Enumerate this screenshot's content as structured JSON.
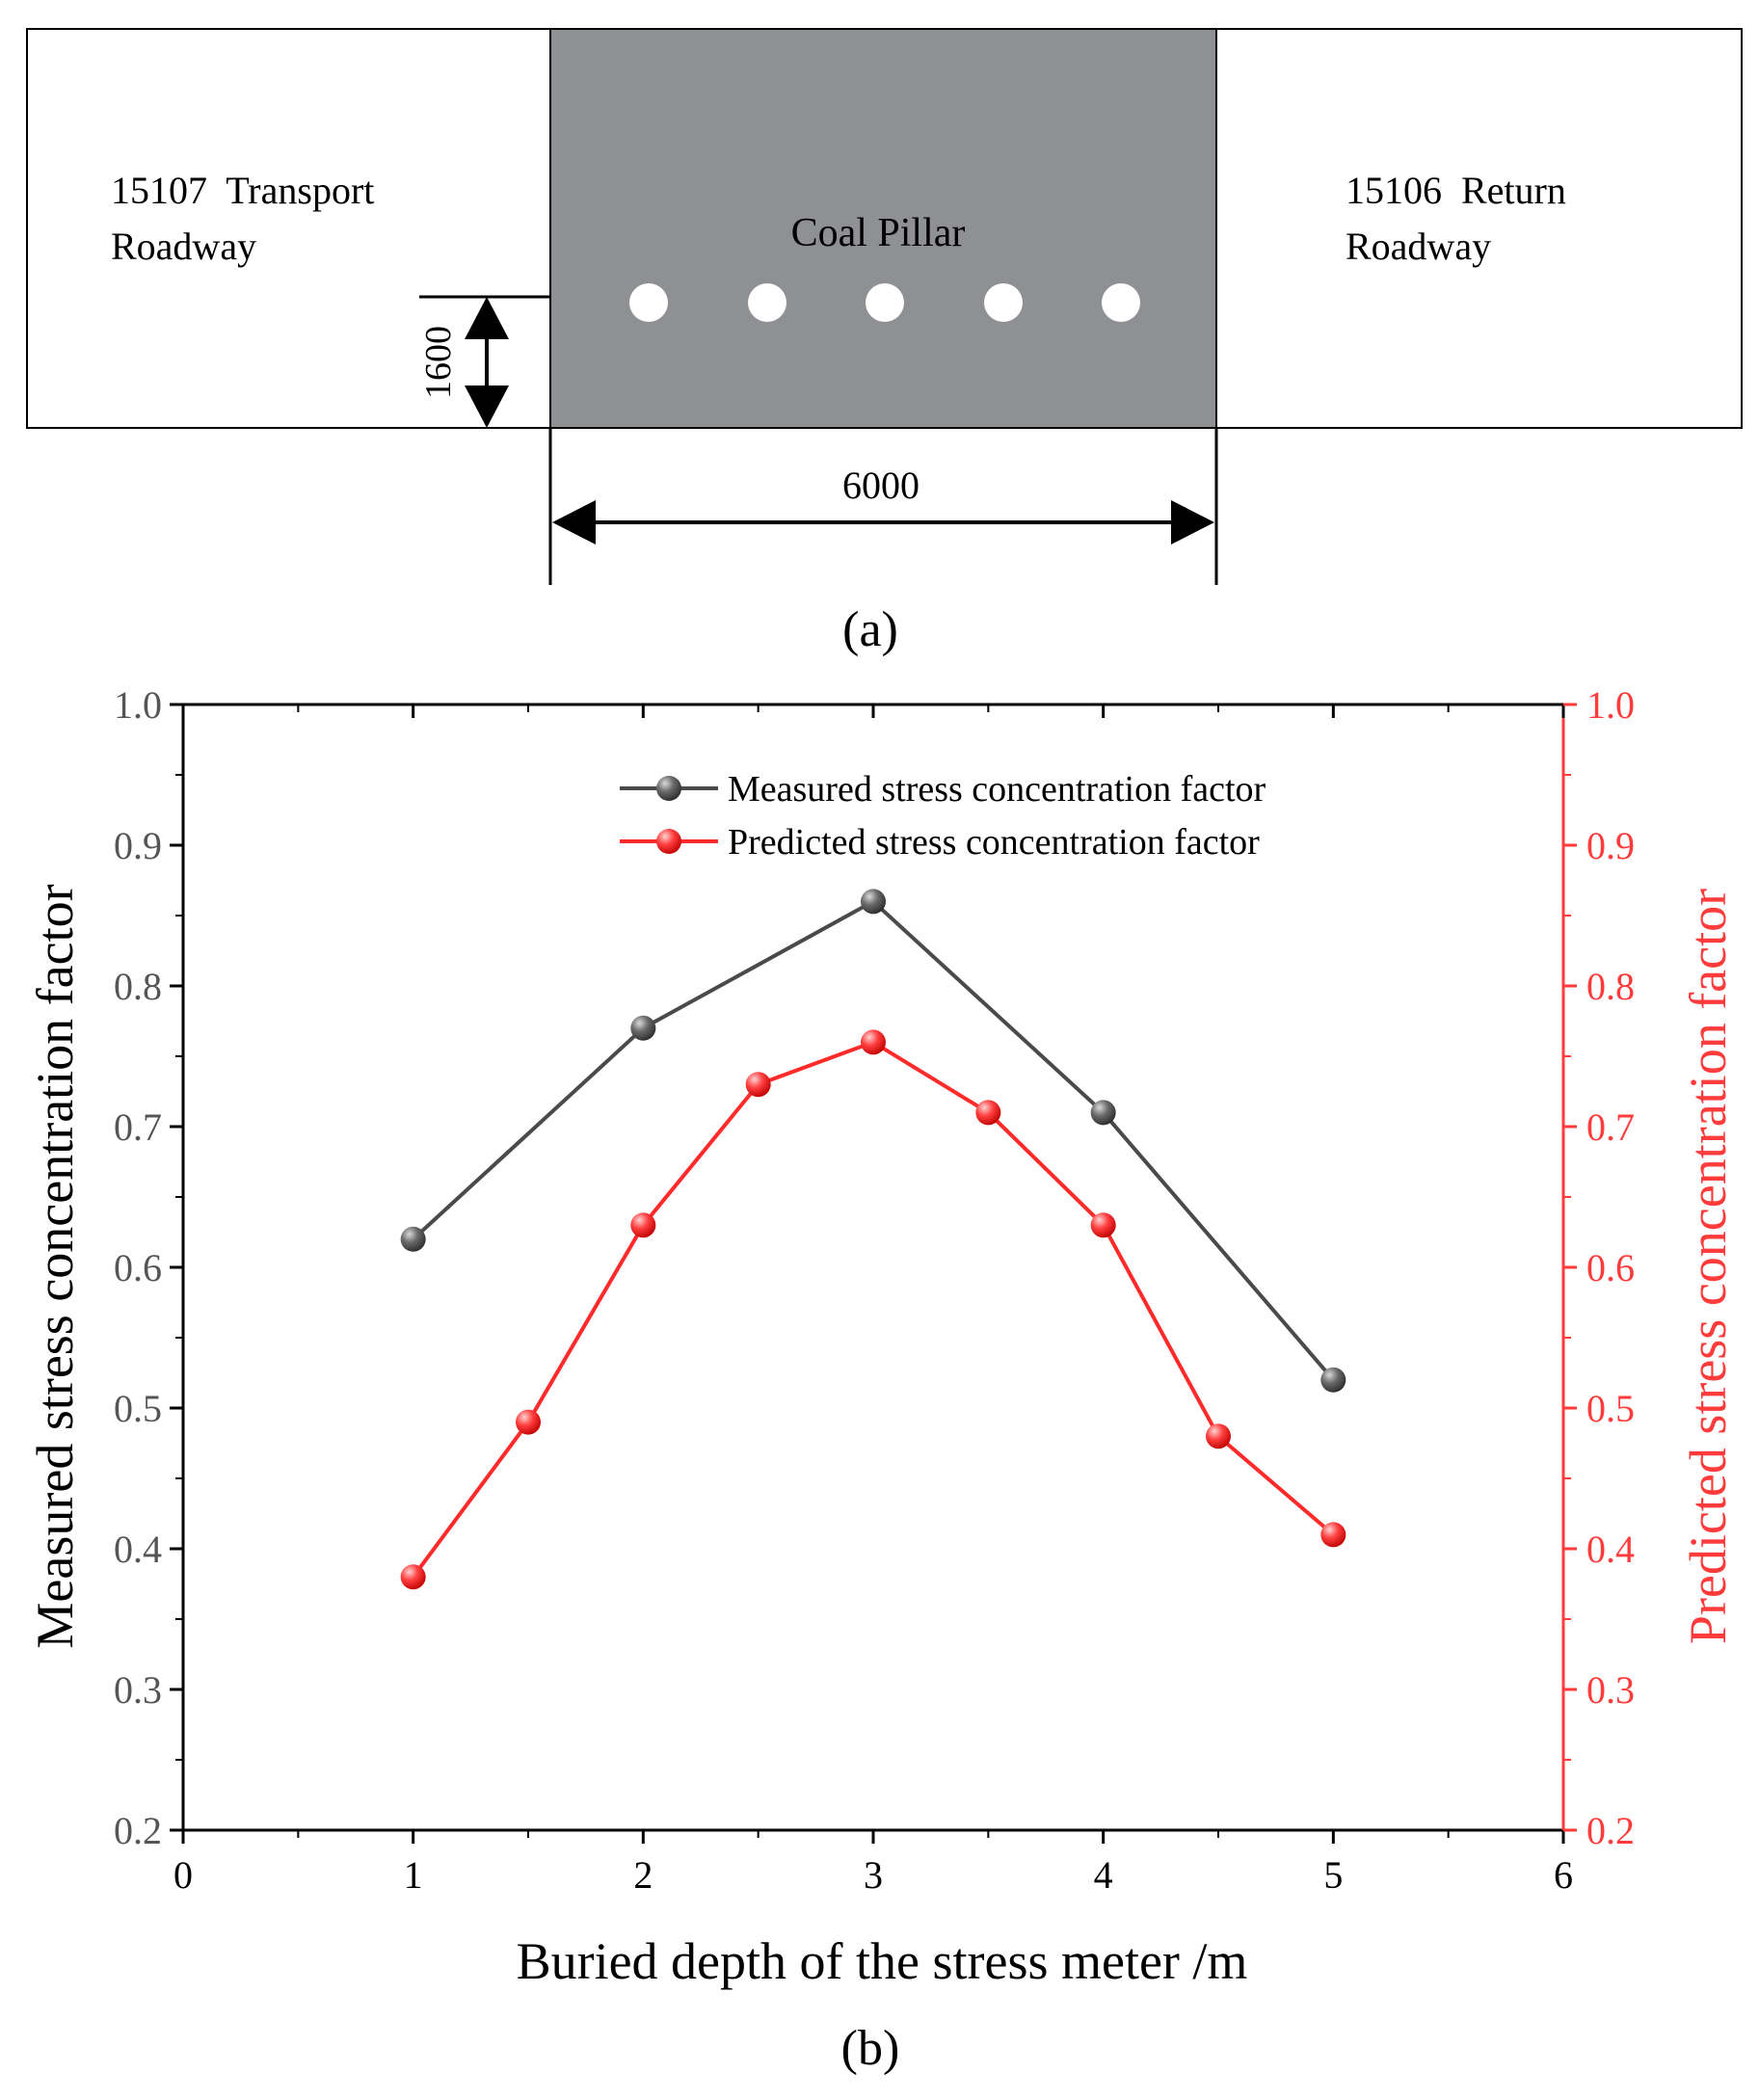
{
  "diagram": {
    "left_label_line1": "15107  Transport",
    "left_label_line2": "Roadway",
    "right_label_line1": "15106  Return",
    "right_label_line2": "Roadway",
    "pillar_label": "Coal Pillar",
    "height_dimension": "1600",
    "width_dimension": "6000",
    "hole_count": 5,
    "caption": "(a)",
    "colors": {
      "pillar": "#8f9093",
      "hole": "#ffffff",
      "outline": "#000000"
    }
  },
  "chart_caption": "(b)",
  "chart_data": {
    "type": "line",
    "xlabel": "Buried depth of the stress meter /m",
    "ylabel_left": "Measured stress concentration factor",
    "ylabel_right": "Predicted stress concentration factor",
    "xlim": [
      0,
      6
    ],
    "ylim": [
      0.2,
      1.0
    ],
    "x_ticks": [
      "0",
      "1",
      "2",
      "3",
      "4",
      "5",
      "6"
    ],
    "y_ticks": [
      "0.2",
      "0.3",
      "0.4",
      "0.5",
      "0.6",
      "0.7",
      "0.8",
      "0.9",
      "1.0"
    ],
    "y_tick_values": [
      0.2,
      0.3,
      0.4,
      0.5,
      0.6,
      0.7,
      0.8,
      0.9,
      1.0
    ],
    "grid": false,
    "legend_position": "top-center",
    "series": [
      {
        "name": "Measured stress concentration factor",
        "axis": "left",
        "color": "#4a4a4a",
        "x": [
          1,
          2,
          3,
          4,
          5
        ],
        "values": [
          0.62,
          0.77,
          0.86,
          0.71,
          0.52
        ]
      },
      {
        "name": "Predicted stress concentration factor",
        "axis": "right",
        "color": "#ff2a2a",
        "x": [
          1,
          1.5,
          2,
          2.5,
          3,
          3.5,
          4,
          4.5,
          5
        ],
        "values": [
          0.38,
          0.49,
          0.63,
          0.73,
          0.76,
          0.71,
          0.63,
          0.48,
          0.41
        ]
      }
    ],
    "colors": {
      "axis_right": "#ff3b3b",
      "axis_left": "#000000",
      "tick_text_left": "#555555"
    }
  }
}
